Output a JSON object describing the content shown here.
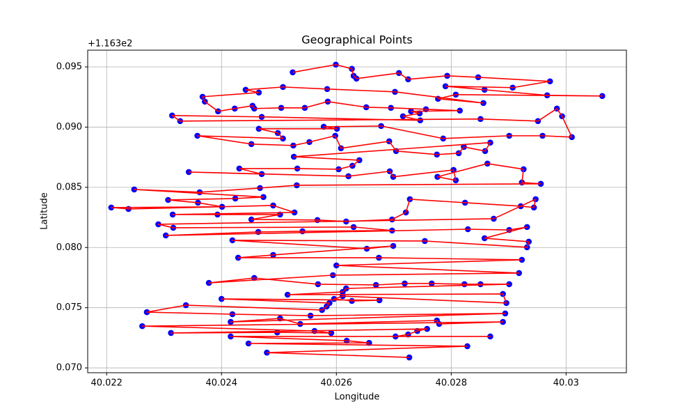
{
  "chart_data": {
    "type": "scatter",
    "title": "Geographical Points",
    "x_label": "Longitude",
    "y_label": "Latitude",
    "y_offset_label": "+1.163e2",
    "marker_color": "#0000ff",
    "line_color": "#ff0000",
    "grid": true,
    "xlim": [
      40.02167,
      40.03105
    ],
    "ylim": [
      0.0696,
      0.09639
    ],
    "xticks": [
      40.022,
      40.024,
      40.026,
      40.028,
      40.03
    ],
    "yticks": [
      {
        "value": 0.07,
        "label": "0.070"
      },
      0.075,
      {
        "value": 0.08,
        "label": "0.080"
      },
      0.085,
      {
        "value": 0.09,
        "label": "0.090"
      },
      0.095
    ],
    "x": [
      40.02524,
      40.02599,
      40.02627,
      40.0263,
      40.02635,
      40.02709,
      40.02725,
      40.02793,
      40.02847,
      40.02972,
      40.02907,
      40.0279,
      40.02858,
      40.02967,
      40.03063,
      40.02808,
      40.02777,
      40.02856,
      40.02702,
      40.02584,
      40.02507,
      40.02442,
      40.02465,
      40.02367,
      40.02371,
      40.02394,
      40.02423,
      40.02454,
      40.02457,
      40.02504,
      40.02545,
      40.02585,
      40.02652,
      40.02695,
      40.02756,
      40.02815,
      40.0273,
      40.02745,
      40.02716,
      40.02746,
      40.0247,
      40.02314,
      40.02328,
      40.02851,
      40.02951,
      40.02984,
      40.02993,
      40.0301,
      40.02959,
      40.02901,
      40.02786,
      40.02678,
      40.02578,
      40.02601,
      40.02465,
      40.02498,
      40.02507,
      40.02358,
      40.02452,
      40.02525,
      40.02553,
      40.02598,
      40.02608,
      40.02692,
      40.02704,
      40.02775,
      40.02813,
      40.02822,
      40.02859,
      40.02868,
      40.02526,
      40.0264,
      40.02628,
      40.02604,
      40.02532,
      40.02431,
      40.0247,
      40.02343,
      40.02621,
      40.02693,
      40.02699,
      40.02804,
      40.02808,
      40.02776,
      40.02863,
      40.02926,
      40.02923,
      40.02956,
      40.02531,
      40.02467,
      40.02362,
      40.02248,
      40.02473,
      40.02424,
      40.02307,
      40.02359,
      40.02401,
      40.02208,
      40.02238,
      40.0249,
      40.02527,
      40.02315,
      40.02393,
      40.02502,
      40.02452,
      40.02567,
      40.02617,
      40.02697,
      40.02721,
      40.02728,
      40.02824,
      40.02921,
      40.02944,
      40.02947,
      40.02874,
      40.0229,
      40.02316,
      40.0263,
      40.02697,
      40.02541,
      40.02464,
      40.02303,
      40.02829,
      40.02901,
      40.02932,
      40.02858,
      40.02935,
      40.02932,
      40.02754,
      40.02419,
      40.02653,
      40.02699,
      40.0249,
      40.02429,
      40.02674,
      40.02923,
      40.026,
      40.02918,
      40.02594,
      40.02378,
      40.02457,
      40.02568,
      40.02669,
      40.02719,
      40.02766,
      40.02823,
      40.02851,
      40.02901,
      40.02617,
      40.02611,
      40.02515,
      40.0289,
      40.02896,
      40.02611,
      40.02596,
      40.02627,
      40.02675,
      40.024,
      40.02588,
      40.02583,
      40.02575,
      40.02338,
      40.0227,
      40.02419,
      40.02555,
      40.02894,
      40.02416,
      40.02502,
      40.02537,
      40.02775,
      40.02779,
      40.0289,
      40.02262,
      40.02562,
      40.02591,
      40.02497,
      40.02312,
      40.02758,
      40.02741,
      40.02725,
      40.02703,
      40.02868,
      40.02416,
      40.02618,
      40.02657,
      40.02447,
      40.02828,
      40.02479,
      40.02727
    ],
    "values": [
      0.09455,
      0.09519,
      0.09484,
      0.09426,
      0.09403,
      0.09449,
      0.09397,
      0.09426,
      0.09414,
      0.0938,
      0.09328,
      0.09339,
      0.0931,
      0.09264,
      0.09258,
      0.0927,
      0.09235,
      0.092,
      0.09293,
      0.09316,
      0.09333,
      0.0931,
      0.09287,
      0.09252,
      0.09212,
      0.09131,
      0.09154,
      0.09177,
      0.09154,
      0.0916,
      0.0916,
      0.09212,
      0.09165,
      0.0916,
      0.09148,
      0.09137,
      0.09131,
      0.09114,
      0.0909,
      0.09056,
      0.09085,
      0.09096,
      0.0905,
      0.09067,
      0.0905,
      0.09154,
      0.0909,
      0.08917,
      0.08928,
      0.08928,
      0.08905,
      0.09009,
      0.09003,
      0.08986,
      0.08986,
      0.08951,
      0.08905,
      0.08928,
      0.08859,
      0.08847,
      0.08876,
      0.08928,
      0.08824,
      0.08882,
      0.08801,
      0.08772,
      0.08783,
      0.08835,
      0.08801,
      0.08871,
      0.08754,
      0.08725,
      0.08679,
      0.0865,
      0.08656,
      0.08656,
      0.0861,
      0.08627,
      0.08592,
      0.08633,
      0.08587,
      0.08644,
      0.08558,
      0.08587,
      0.08697,
      0.0865,
      0.0854,
      0.08529,
      0.08517,
      0.08494,
      0.08459,
      0.08482,
      0.08419,
      0.08407,
      0.08395,
      0.08372,
      0.08338,
      0.08332,
      0.0832,
      0.08349,
      0.08291,
      0.08274,
      0.08274,
      0.08274,
      0.08233,
      0.08228,
      0.08216,
      0.08233,
      0.08291,
      0.08401,
      0.08372,
      0.08343,
      0.08332,
      0.08401,
      0.08239,
      0.08193,
      0.08164,
      0.0817,
      0.08141,
      0.08135,
      0.08129,
      0.081,
      0.08152,
      0.08146,
      0.0817,
      0.08077,
      0.08048,
      0.08002,
      0.08054,
      0.0806,
      0.0799,
      0.08013,
      0.07938,
      0.07915,
      0.07915,
      0.07898,
      0.07851,
      0.07788,
      0.0777,
      0.07706,
      0.07747,
      0.07695,
      0.07689,
      0.07701,
      0.07701,
      0.07695,
      0.07695,
      0.07695,
      0.0766,
      0.07631,
      0.07608,
      0.07614,
      0.07539,
      0.07596,
      0.07573,
      0.07556,
      0.07562,
      0.07573,
      0.07539,
      0.0751,
      0.07481,
      0.07521,
      0.07463,
      0.07446,
      0.07434,
      0.07452,
      0.07382,
      0.07411,
      0.07365,
      0.07394,
      0.07365,
      0.07382,
      0.07347,
      0.07307,
      0.0729,
      0.07295,
      0.0729,
      0.07324,
      0.07307,
      0.07278,
      0.07261,
      0.07261,
      0.07261,
      0.07226,
      0.07208,
      0.07203,
      0.0718,
      0.07127,
      0.07087
    ]
  }
}
